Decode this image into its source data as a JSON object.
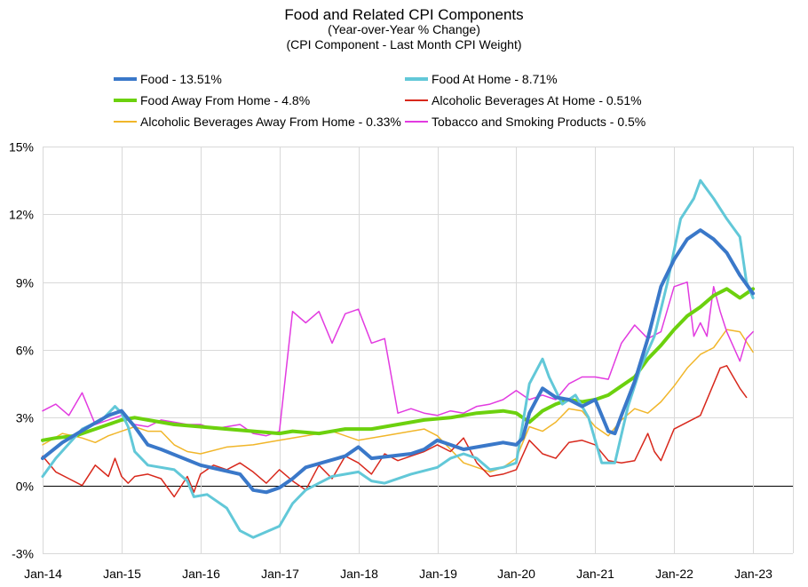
{
  "chart_data": {
    "type": "line",
    "title": "Food and Related CPI Components",
    "subtitle": [
      "(Year-over-Year % Change)",
      "(CPI Component - Last Month CPI Weight)"
    ],
    "xlabel": "",
    "ylabel": "",
    "x_start": "Jan-14",
    "x_end": "Mar-23",
    "x_ticks": [
      "Jan-14",
      "Jan-15",
      "Jan-16",
      "Jan-17",
      "Jan-18",
      "Jan-19",
      "Jan-20",
      "Jan-21",
      "Jan-22",
      "Jan-23"
    ],
    "ylim": [
      -3,
      15
    ],
    "y_ticks": [
      -3,
      0,
      3,
      6,
      9,
      12,
      15
    ],
    "y_tick_labels": [
      "-3%",
      "0%",
      "3%",
      "6%",
      "9%",
      "12%",
      "15%"
    ],
    "grid": true,
    "legend_position": "top",
    "series": [
      {
        "name": "Food - 13.51%",
        "color": "#3a78c9",
        "width": 4,
        "anchors": [
          [
            0,
            1.2
          ],
          [
            3,
            1.9
          ],
          [
            7,
            2.6
          ],
          [
            10,
            3.1
          ],
          [
            12,
            3.3
          ],
          [
            14,
            2.6
          ],
          [
            16,
            1.8
          ],
          [
            18,
            1.6
          ],
          [
            24,
            0.9
          ],
          [
            30,
            0.5
          ],
          [
            32,
            -0.2
          ],
          [
            34,
            -0.3
          ],
          [
            36,
            -0.1
          ],
          [
            38,
            0.3
          ],
          [
            40,
            0.8
          ],
          [
            46,
            1.3
          ],
          [
            48,
            1.7
          ],
          [
            50,
            1.2
          ],
          [
            56,
            1.4
          ],
          [
            58,
            1.6
          ],
          [
            60,
            2.0
          ],
          [
            62,
            1.8
          ],
          [
            64,
            1.6
          ],
          [
            68,
            1.8
          ],
          [
            70,
            1.9
          ],
          [
            72,
            1.8
          ],
          [
            73,
            2.1
          ],
          [
            74,
            3.2
          ],
          [
            76,
            4.3
          ],
          [
            78,
            3.9
          ],
          [
            80,
            3.8
          ],
          [
            82,
            3.5
          ],
          [
            84,
            3.8
          ],
          [
            86,
            2.4
          ],
          [
            87,
            2.3
          ],
          [
            88,
            3.1
          ],
          [
            90,
            4.6
          ],
          [
            92,
            6.5
          ],
          [
            94,
            8.8
          ],
          [
            96,
            10.0
          ],
          [
            98,
            10.9
          ],
          [
            100,
            11.3
          ],
          [
            102,
            10.9
          ],
          [
            104,
            10.3
          ],
          [
            106,
            9.3
          ],
          [
            108,
            8.5
          ]
        ]
      },
      {
        "name": "Food At Home - 8.71%",
        "color": "#62c8d8",
        "width": 3,
        "anchors": [
          [
            0,
            0.4
          ],
          [
            2,
            1.2
          ],
          [
            6,
            2.5
          ],
          [
            9,
            2.9
          ],
          [
            11,
            3.5
          ],
          [
            12,
            3.2
          ],
          [
            13,
            2.6
          ],
          [
            14,
            1.5
          ],
          [
            16,
            0.9
          ],
          [
            20,
            0.7
          ],
          [
            22,
            0.2
          ],
          [
            23,
            -0.5
          ],
          [
            25,
            -0.4
          ],
          [
            28,
            -1.0
          ],
          [
            30,
            -2.0
          ],
          [
            32,
            -2.3
          ],
          [
            36,
            -1.8
          ],
          [
            38,
            -0.8
          ],
          [
            40,
            -0.2
          ],
          [
            42,
            0.1
          ],
          [
            44,
            0.4
          ],
          [
            48,
            0.6
          ],
          [
            50,
            0.2
          ],
          [
            52,
            0.1
          ],
          [
            56,
            0.5
          ],
          [
            60,
            0.8
          ],
          [
            62,
            1.2
          ],
          [
            64,
            1.4
          ],
          [
            66,
            1.2
          ],
          [
            68,
            0.7
          ],
          [
            70,
            0.8
          ],
          [
            72,
            1.0
          ],
          [
            74,
            4.5
          ],
          [
            76,
            5.6
          ],
          [
            77,
            4.8
          ],
          [
            79,
            3.6
          ],
          [
            81,
            4.0
          ],
          [
            83,
            3.0
          ],
          [
            85,
            1.0
          ],
          [
            87,
            1.0
          ],
          [
            89,
            3.5
          ],
          [
            91,
            5.3
          ],
          [
            93,
            6.6
          ],
          [
            95,
            9.0
          ],
          [
            97,
            11.8
          ],
          [
            99,
            12.7
          ],
          [
            100,
            13.5
          ],
          [
            102,
            12.7
          ],
          [
            104,
            11.8
          ],
          [
            106,
            11.0
          ],
          [
            107,
            9.0
          ],
          [
            108,
            8.3
          ]
        ]
      },
      {
        "name": "Food Away From Home - 4.8%",
        "color": "#6cd10e",
        "width": 4,
        "anchors": [
          [
            0,
            2.0
          ],
          [
            2,
            2.1
          ],
          [
            5,
            2.2
          ],
          [
            8,
            2.5
          ],
          [
            10,
            2.7
          ],
          [
            12,
            2.9
          ],
          [
            14,
            3.0
          ],
          [
            16,
            2.9
          ],
          [
            20,
            2.7
          ],
          [
            24,
            2.6
          ],
          [
            28,
            2.5
          ],
          [
            32,
            2.4
          ],
          [
            36,
            2.3
          ],
          [
            38,
            2.4
          ],
          [
            42,
            2.3
          ],
          [
            46,
            2.5
          ],
          [
            50,
            2.5
          ],
          [
            54,
            2.7
          ],
          [
            58,
            2.9
          ],
          [
            62,
            3.0
          ],
          [
            66,
            3.2
          ],
          [
            70,
            3.3
          ],
          [
            72,
            3.2
          ],
          [
            74,
            2.8
          ],
          [
            76,
            3.3
          ],
          [
            78,
            3.6
          ],
          [
            80,
            3.8
          ],
          [
            82,
            3.7
          ],
          [
            84,
            3.8
          ],
          [
            86,
            4.0
          ],
          [
            88,
            4.4
          ],
          [
            90,
            4.8
          ],
          [
            92,
            5.6
          ],
          [
            94,
            6.2
          ],
          [
            96,
            6.9
          ],
          [
            98,
            7.5
          ],
          [
            100,
            7.9
          ],
          [
            102,
            8.4
          ],
          [
            104,
            8.7
          ],
          [
            106,
            8.3
          ],
          [
            108,
            8.7
          ]
        ]
      },
      {
        "name": "Alcoholic Beverages At Home - 0.51%",
        "color": "#d8281c",
        "width": 1.5,
        "anchors": [
          [
            0,
            1.3
          ],
          [
            2,
            0.6
          ],
          [
            4,
            0.3
          ],
          [
            6,
            0.0
          ],
          [
            8,
            0.9
          ],
          [
            10,
            0.4
          ],
          [
            11,
            1.2
          ],
          [
            12,
            0.4
          ],
          [
            13,
            0.1
          ],
          [
            14,
            0.4
          ],
          [
            16,
            0.5
          ],
          [
            18,
            0.3
          ],
          [
            20,
            -0.5
          ],
          [
            22,
            0.4
          ],
          [
            23,
            -0.3
          ],
          [
            24,
            0.5
          ],
          [
            26,
            0.9
          ],
          [
            28,
            0.7
          ],
          [
            30,
            1.0
          ],
          [
            32,
            0.6
          ],
          [
            34,
            0.1
          ],
          [
            36,
            0.7
          ],
          [
            38,
            0.2
          ],
          [
            40,
            -0.2
          ],
          [
            42,
            0.9
          ],
          [
            44,
            0.3
          ],
          [
            46,
            1.3
          ],
          [
            48,
            1.0
          ],
          [
            50,
            0.5
          ],
          [
            52,
            1.4
          ],
          [
            54,
            1.1
          ],
          [
            56,
            1.3
          ],
          [
            58,
            1.5
          ],
          [
            60,
            1.8
          ],
          [
            62,
            1.5
          ],
          [
            64,
            2.1
          ],
          [
            66,
            1.0
          ],
          [
            68,
            0.4
          ],
          [
            70,
            0.5
          ],
          [
            72,
            0.7
          ],
          [
            74,
            2.0
          ],
          [
            76,
            1.4
          ],
          [
            78,
            1.2
          ],
          [
            80,
            1.9
          ],
          [
            82,
            2.0
          ],
          [
            84,
            1.8
          ],
          [
            86,
            1.1
          ],
          [
            88,
            1.0
          ],
          [
            90,
            1.1
          ],
          [
            92,
            2.3
          ],
          [
            93,
            1.5
          ],
          [
            94,
            1.1
          ],
          [
            96,
            2.5
          ],
          [
            98,
            2.8
          ],
          [
            100,
            3.1
          ],
          [
            102,
            4.5
          ],
          [
            103,
            5.2
          ],
          [
            104,
            5.3
          ],
          [
            106,
            4.3
          ],
          [
            107,
            3.9
          ]
        ]
      },
      {
        "name": "Alcoholic Beverages Away From Home - 0.33%",
        "color": "#f1b62a",
        "width": 1.5,
        "anchors": [
          [
            0,
            1.8
          ],
          [
            3,
            2.3
          ],
          [
            6,
            2.1
          ],
          [
            8,
            1.9
          ],
          [
            10,
            2.2
          ],
          [
            12,
            2.4
          ],
          [
            14,
            2.6
          ],
          [
            16,
            2.4
          ],
          [
            18,
            2.4
          ],
          [
            20,
            1.8
          ],
          [
            22,
            1.5
          ],
          [
            24,
            1.4
          ],
          [
            28,
            1.7
          ],
          [
            32,
            1.8
          ],
          [
            36,
            2.0
          ],
          [
            40,
            2.2
          ],
          [
            44,
            2.4
          ],
          [
            48,
            2.0
          ],
          [
            52,
            2.2
          ],
          [
            56,
            2.4
          ],
          [
            58,
            2.5
          ],
          [
            60,
            2.2
          ],
          [
            62,
            1.6
          ],
          [
            64,
            1.0
          ],
          [
            66,
            0.8
          ],
          [
            68,
            0.6
          ],
          [
            70,
            0.8
          ],
          [
            72,
            1.2
          ],
          [
            74,
            2.6
          ],
          [
            76,
            2.4
          ],
          [
            78,
            2.8
          ],
          [
            80,
            3.4
          ],
          [
            82,
            3.3
          ],
          [
            84,
            2.6
          ],
          [
            86,
            2.2
          ],
          [
            88,
            2.9
          ],
          [
            90,
            3.4
          ],
          [
            92,
            3.2
          ],
          [
            94,
            3.7
          ],
          [
            96,
            4.4
          ],
          [
            98,
            5.2
          ],
          [
            100,
            5.8
          ],
          [
            102,
            6.1
          ],
          [
            104,
            6.9
          ],
          [
            106,
            6.8
          ],
          [
            108,
            5.9
          ]
        ]
      },
      {
        "name": "Tobacco and Smoking Products - 0.5%",
        "color": "#e23be0",
        "width": 1.5,
        "anchors": [
          [
            0,
            3.3
          ],
          [
            2,
            3.6
          ],
          [
            4,
            3.1
          ],
          [
            6,
            4.1
          ],
          [
            8,
            2.7
          ],
          [
            10,
            2.9
          ],
          [
            12,
            3.1
          ],
          [
            14,
            2.7
          ],
          [
            16,
            2.6
          ],
          [
            18,
            2.9
          ],
          [
            20,
            2.8
          ],
          [
            22,
            2.7
          ],
          [
            24,
            2.7
          ],
          [
            26,
            2.5
          ],
          [
            28,
            2.6
          ],
          [
            30,
            2.7
          ],
          [
            32,
            2.3
          ],
          [
            34,
            2.2
          ],
          [
            36,
            2.4
          ],
          [
            38,
            7.7
          ],
          [
            40,
            7.2
          ],
          [
            42,
            7.7
          ],
          [
            44,
            6.3
          ],
          [
            46,
            7.6
          ],
          [
            48,
            7.8
          ],
          [
            50,
            6.3
          ],
          [
            52,
            6.5
          ],
          [
            54,
            3.2
          ],
          [
            56,
            3.4
          ],
          [
            58,
            3.2
          ],
          [
            60,
            3.1
          ],
          [
            62,
            3.3
          ],
          [
            64,
            3.2
          ],
          [
            66,
            3.5
          ],
          [
            68,
            3.6
          ],
          [
            70,
            3.8
          ],
          [
            72,
            4.2
          ],
          [
            74,
            3.8
          ],
          [
            76,
            4.0
          ],
          [
            78,
            3.8
          ],
          [
            80,
            4.5
          ],
          [
            82,
            4.8
          ],
          [
            84,
            4.8
          ],
          [
            86,
            4.7
          ],
          [
            88,
            6.3
          ],
          [
            90,
            7.1
          ],
          [
            92,
            6.5
          ],
          [
            94,
            6.8
          ],
          [
            96,
            8.8
          ],
          [
            98,
            9.0
          ],
          [
            99,
            6.6
          ],
          [
            100,
            7.2
          ],
          [
            101,
            6.6
          ],
          [
            102,
            8.8
          ],
          [
            103,
            7.7
          ],
          [
            104,
            6.8
          ],
          [
            106,
            5.5
          ],
          [
            107,
            6.5
          ],
          [
            108,
            6.8
          ]
        ]
      }
    ]
  }
}
